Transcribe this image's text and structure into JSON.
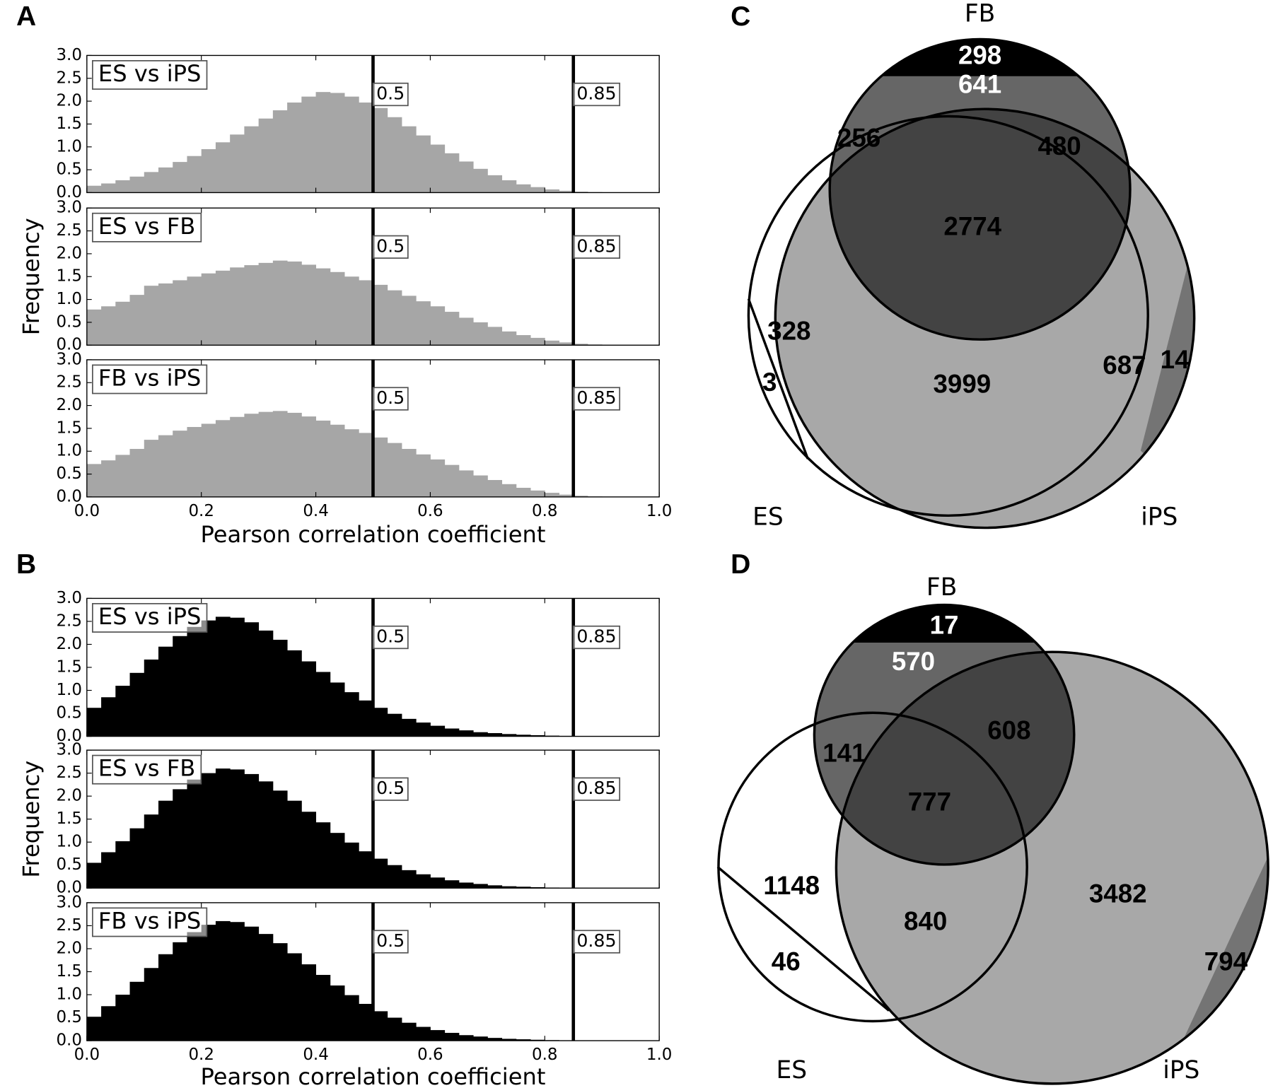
{
  "chart_data": [
    {
      "type": "histogram",
      "label": "A",
      "xlabel": "Pearson correlation coefficient",
      "ylabel": "Frequency",
      "xlim": [
        0,
        1
      ],
      "ylim": [
        0,
        3
      ],
      "xticks": [
        {
          "value": 0,
          "label": "0.0"
        },
        0.2,
        0.4,
        0.6,
        0.8,
        {
          "value": 1,
          "label": "1.0"
        }
      ],
      "yticks": [
        {
          "value": 0,
          "label": "0.0"
        },
        0.5,
        {
          "value": 1,
          "label": "1.0"
        },
        1.5,
        {
          "value": 2,
          "label": "2.0"
        },
        2.5,
        {
          "value": 3,
          "label": "3.0"
        }
      ],
      "vlines": [
        0.5,
        0.85
      ],
      "bins": [
        0,
        0.025,
        0.05,
        0.075,
        0.1,
        0.125,
        0.15,
        0.175,
        0.2,
        0.225,
        0.25,
        0.275,
        0.3,
        0.325,
        0.35,
        0.375,
        0.4,
        0.425,
        0.45,
        0.475,
        0.5,
        0.525,
        0.55,
        0.575,
        0.6,
        0.625,
        0.65,
        0.675,
        0.7,
        0.725,
        0.75,
        0.775,
        0.8,
        0.825,
        0.85,
        0.875,
        0.9,
        0.925,
        0.95,
        0.975,
        1
      ],
      "series": [
        {
          "name": "ES vs iPS",
          "color": "#a6a6a6",
          "values": [
            0.15,
            0.2,
            0.27,
            0.35,
            0.45,
            0.55,
            0.67,
            0.8,
            0.95,
            1.1,
            1.27,
            1.45,
            1.62,
            1.8,
            1.97,
            2.1,
            2.2,
            2.18,
            2.1,
            1.97,
            1.85,
            1.65,
            1.45,
            1.25,
            1.05,
            0.86,
            0.68,
            0.52,
            0.38,
            0.27,
            0.18,
            0.12,
            0.07,
            0.04,
            0.02,
            0.01,
            0.005,
            0,
            0,
            0
          ]
        },
        {
          "name": "ES vs FB",
          "color": "#a6a6a6",
          "values": [
            0.78,
            0.85,
            0.95,
            1.1,
            1.3,
            1.35,
            1.42,
            1.5,
            1.57,
            1.63,
            1.7,
            1.75,
            1.8,
            1.85,
            1.83,
            1.76,
            1.68,
            1.6,
            1.5,
            1.42,
            1.32,
            1.2,
            1.08,
            0.96,
            0.85,
            0.73,
            0.6,
            0.5,
            0.4,
            0.3,
            0.22,
            0.16,
            0.1,
            0.06,
            0.03,
            0.015,
            0.005,
            0,
            0,
            0
          ]
        },
        {
          "name": "FB vs iPS",
          "color": "#a6a6a6",
          "values": [
            0.72,
            0.8,
            0.92,
            1.05,
            1.25,
            1.35,
            1.45,
            1.53,
            1.6,
            1.68,
            1.75,
            1.82,
            1.86,
            1.88,
            1.84,
            1.76,
            1.67,
            1.58,
            1.48,
            1.4,
            1.3,
            1.18,
            1.05,
            0.93,
            0.82,
            0.7,
            0.58,
            0.47,
            0.37,
            0.28,
            0.2,
            0.14,
            0.09,
            0.05,
            0.025,
            0.01,
            0.005,
            0,
            0,
            0
          ]
        }
      ]
    },
    {
      "type": "histogram",
      "label": "B",
      "xlabel": "Pearson correlation coefficient",
      "ylabel": "Frequency",
      "xlim": [
        0,
        1
      ],
      "ylim": [
        0,
        3
      ],
      "xticks": [
        {
          "value": 0,
          "label": "0.0"
        },
        0.2,
        0.4,
        0.6,
        0.8,
        {
          "value": 1,
          "label": "1.0"
        }
      ],
      "yticks": [
        {
          "value": 0,
          "label": "0.0"
        },
        0.5,
        {
          "value": 1,
          "label": "1.0"
        },
        1.5,
        {
          "value": 2,
          "label": "2.0"
        },
        2.5,
        {
          "value": 3,
          "label": "3.0"
        }
      ],
      "vlines": [
        0.5,
        0.85
      ],
      "bins": [
        0,
        0.025,
        0.05,
        0.075,
        0.1,
        0.125,
        0.15,
        0.175,
        0.2,
        0.225,
        0.25,
        0.275,
        0.3,
        0.325,
        0.35,
        0.375,
        0.4,
        0.425,
        0.45,
        0.475,
        0.5,
        0.525,
        0.55,
        0.575,
        0.6,
        0.625,
        0.65,
        0.675,
        0.7,
        0.725,
        0.75,
        0.775,
        0.8,
        0.825,
        0.85,
        0.875,
        0.9,
        0.925,
        0.95,
        0.975,
        1
      ],
      "series": [
        {
          "name": "ES vs iPS",
          "color": "#000000",
          "values": [
            0.62,
            0.85,
            1.1,
            1.38,
            1.67,
            1.95,
            2.18,
            2.38,
            2.52,
            2.6,
            2.58,
            2.48,
            2.3,
            2.1,
            1.87,
            1.63,
            1.4,
            1.17,
            0.96,
            0.78,
            0.62,
            0.49,
            0.38,
            0.3,
            0.23,
            0.17,
            0.13,
            0.09,
            0.07,
            0.05,
            0.035,
            0.025,
            0.015,
            0.01,
            0.005,
            0.003,
            0,
            0,
            0,
            0
          ]
        },
        {
          "name": "ES vs FB",
          "color": "#000000",
          "values": [
            0.55,
            0.78,
            1.02,
            1.3,
            1.6,
            1.9,
            2.15,
            2.36,
            2.5,
            2.6,
            2.58,
            2.48,
            2.32,
            2.12,
            1.9,
            1.66,
            1.43,
            1.2,
            0.99,
            0.8,
            0.64,
            0.5,
            0.39,
            0.3,
            0.23,
            0.17,
            0.12,
            0.09,
            0.06,
            0.04,
            0.03,
            0.02,
            0.012,
            0.007,
            0.004,
            0.002,
            0,
            0,
            0,
            0
          ]
        },
        {
          "name": "FB vs iPS",
          "color": "#000000",
          "values": [
            0.52,
            0.75,
            1.0,
            1.28,
            1.58,
            1.88,
            2.14,
            2.36,
            2.52,
            2.6,
            2.58,
            2.48,
            2.32,
            2.12,
            1.9,
            1.66,
            1.43,
            1.2,
            0.99,
            0.8,
            0.64,
            0.5,
            0.39,
            0.3,
            0.23,
            0.17,
            0.12,
            0.09,
            0.06,
            0.04,
            0.03,
            0.02,
            0.012,
            0.007,
            0.004,
            0.002,
            0,
            0,
            0,
            0
          ]
        }
      ]
    },
    {
      "type": "venn",
      "label": "C",
      "sets": [
        "FB",
        "ES",
        "iPS"
      ],
      "values": [
        298,
        641,
        256,
        480,
        2774,
        328,
        3,
        3999,
        687,
        14
      ]
    },
    {
      "type": "venn",
      "label": "D",
      "sets": [
        "FB",
        "ES",
        "iPS"
      ],
      "values": [
        17,
        570,
        141,
        608,
        777,
        1148,
        46,
        840,
        3482,
        794
      ]
    }
  ]
}
